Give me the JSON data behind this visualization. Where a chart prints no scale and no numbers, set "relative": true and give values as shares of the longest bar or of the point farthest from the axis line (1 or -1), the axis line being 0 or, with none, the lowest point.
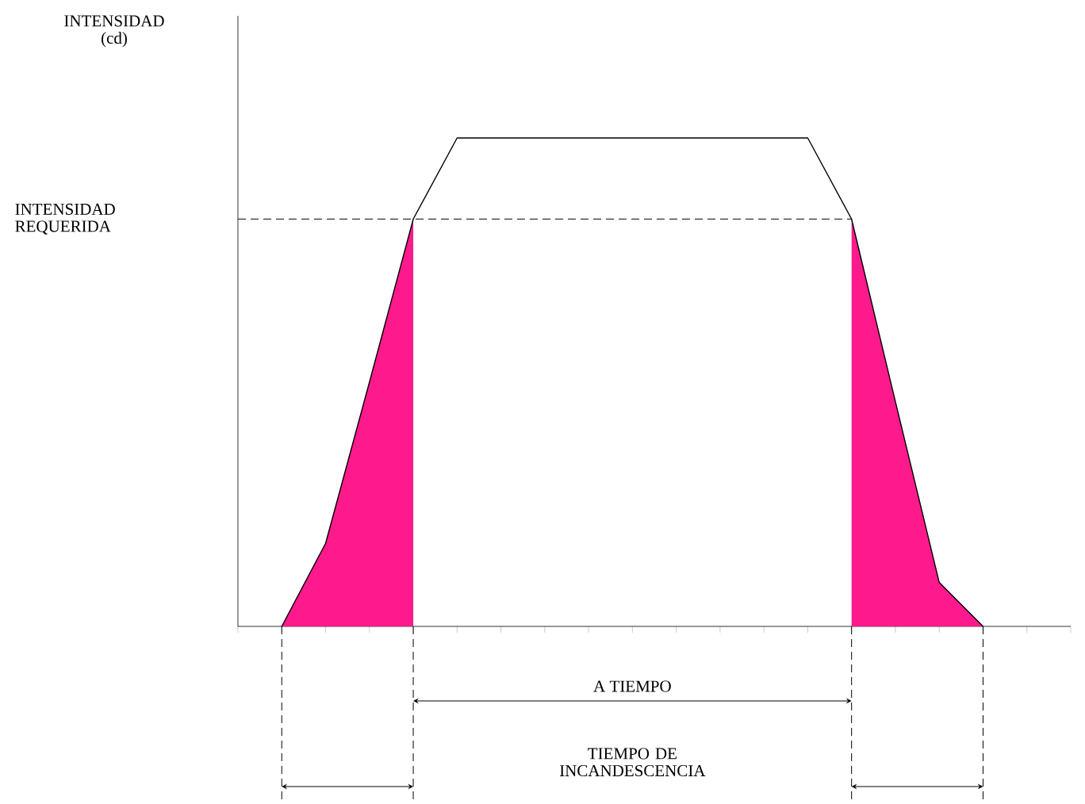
{
  "chart_data": {
    "type": "line",
    "relative": true,
    "categories": [
      null,
      null,
      null,
      null,
      null,
      null,
      null,
      null,
      null,
      null,
      null,
      null,
      null,
      null,
      null,
      null,
      null,
      null,
      null,
      null
    ],
    "series": [
      {
        "color": "#000000",
        "values": [
          null,
          0,
          0.17,
          0.5,
          0.834,
          1,
          1,
          1,
          1,
          1,
          1,
          1,
          1,
          1,
          0.834,
          0.46,
          0.09,
          0,
          null,
          null
        ]
      },
      {
        "type": "area",
        "color": "#fe1a8c",
        "values": [
          null,
          0,
          0.17,
          0.5,
          0.834,
          null,
          null,
          null,
          null,
          null,
          null,
          null,
          null,
          null,
          null,
          null,
          null,
          null,
          null,
          null
        ]
      },
      {
        "type": "area",
        "color": "#fe1a8c",
        "values": [
          null,
          null,
          null,
          null,
          null,
          null,
          null,
          null,
          null,
          null,
          null,
          null,
          null,
          null,
          0.834,
          0.46,
          0.09,
          0,
          null,
          null
        ]
      }
    ],
    "ref_lines": [
      {
        "axis": "y",
        "value": 0.834,
        "label": "INTENSIDAD REQUERIDA",
        "line_style": "dashed",
        "color": "#000000"
      }
    ],
    "annotations": [
      "INTENSIDAD (cd)",
      "A TIEMPO",
      "TIEMPO DE INCANDESCENCIA"
    ]
  }
}
